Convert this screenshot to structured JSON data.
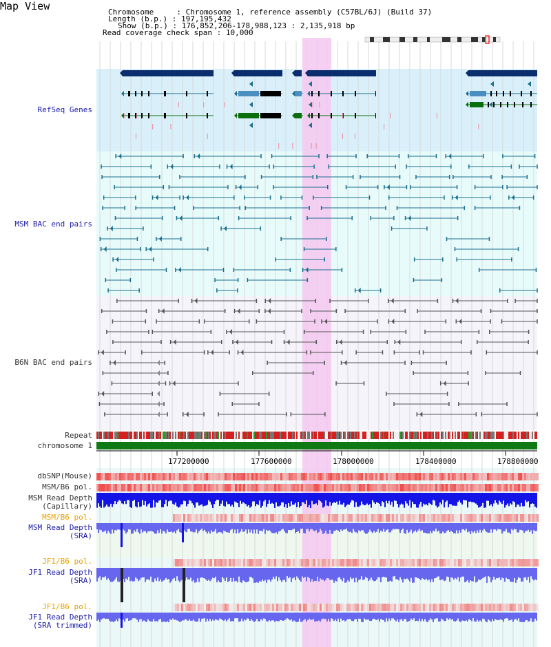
{
  "app": {
    "title": "Map View"
  },
  "header": {
    "chromosome_label": "Chromosome",
    "chromosome_value": "Chromosome 1, reference assembly (C57BL/6J) (Build 37)",
    "length_label": "Length (b.p.)",
    "length_value": "197,195,432",
    "show_label": "Show (b.p.)",
    "show_value": "176,852,206-178,988,123 : 2,135,918 bp",
    "coverage_label": "Read coverage check span",
    "coverage_value": "10,000"
  },
  "tracks": {
    "refseq": "RefSeq Genes",
    "msm_bac": "MSM BAC end pairs",
    "b6n_bac": "B6N BAC end pairs",
    "repeat": "Repeat",
    "chromosome": "chromosome 1",
    "dbsnp": "dbSNP(Mouse)",
    "msm_b6_pol_a": "MSM/B6 pol.",
    "msm_read_depth_cap_1": "MSM Read Depth",
    "msm_read_depth_cap_2": "(Capillary)",
    "msm_b6_pol_b": "MSM/B6 pol.",
    "msm_read_depth_sra_1": "MSM Read Depth",
    "msm_read_depth_sra_2": "(SRA)",
    "jf1_b6_pol_a": "JF1/B6 pol.",
    "jf1_read_depth_sra_1": "JF1 Read Depth",
    "jf1_read_depth_sra_2": "(SRA)",
    "jf1_b6_pol_b": "JF1/B6 pol.",
    "jf1_read_depth_trim_1": "JF1 Read Depth",
    "jf1_read_depth_trim_2": "(SRA trimmed)"
  },
  "axis": {
    "ticks": [
      "177200000",
      "177600000",
      "178000000",
      "178400000",
      "178800000"
    ]
  },
  "colors": {
    "gene_navy": "#0a2d6e",
    "gene_teal": "#1d6e8c",
    "gene_green": "#0a6e0a",
    "msm_bac": "#1a6e8c",
    "b6n_bac": "#555555",
    "chromosome_bar": "#0f7a14",
    "highlight": "#f5c8f0",
    "depth_blue": "#1414e6",
    "depth_light": "#6666ee",
    "snp_red": "#f07070"
  }
}
